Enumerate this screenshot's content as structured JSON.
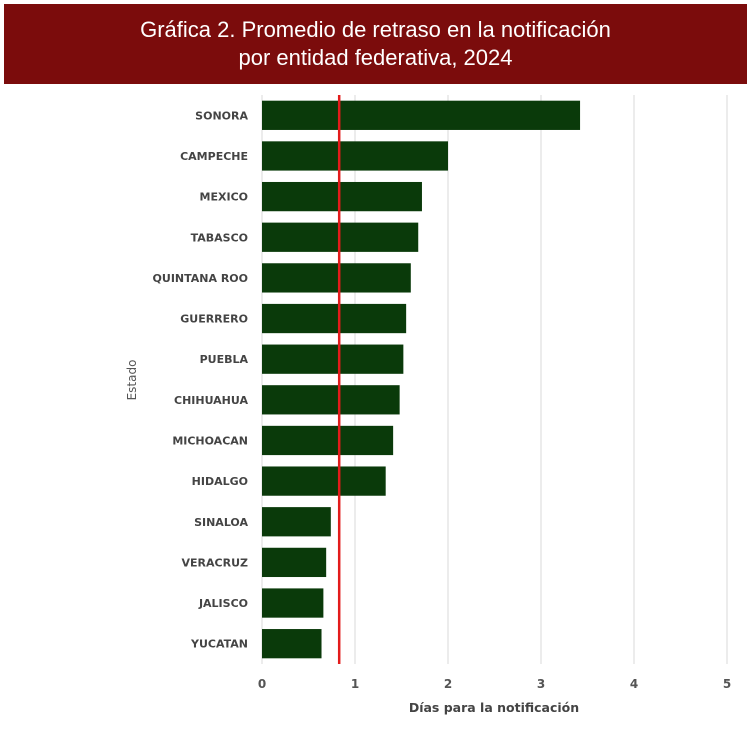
{
  "title": {
    "line1": "Gráfica 2. Promedio de retraso en la notificación",
    "line2": "por entidad federativa, 2024"
  },
  "chart_data": {
    "type": "bar",
    "orientation": "horizontal",
    "categories": [
      "SONORA",
      "CAMPECHE",
      "MEXICO",
      "TABASCO",
      "QUINTANA ROO",
      "GUERRERO",
      "PUEBLA",
      "CHIHUAHUA",
      "MICHOACAN",
      "HIDALGO",
      "SINALOA",
      "VERACRUZ",
      "JALISCO",
      "YUCATAN"
    ],
    "values": [
      3.42,
      2.0,
      1.72,
      1.68,
      1.6,
      1.55,
      1.52,
      1.48,
      1.41,
      1.33,
      0.74,
      0.69,
      0.66,
      0.64
    ],
    "xlabel": "Días para la notificación",
    "ylabel": "Estado",
    "xlim": [
      0,
      5
    ],
    "xticks": [
      "0",
      "1",
      "2",
      "3",
      "4",
      "5"
    ],
    "reference_line": {
      "value": 0.83,
      "color": "#e31b1b"
    },
    "bar_color": "#0a3a0a",
    "grid": "vertical",
    "legend": "none"
  },
  "colors": {
    "title_background": "#7b0c0c",
    "title_text": "#ffffff"
  }
}
